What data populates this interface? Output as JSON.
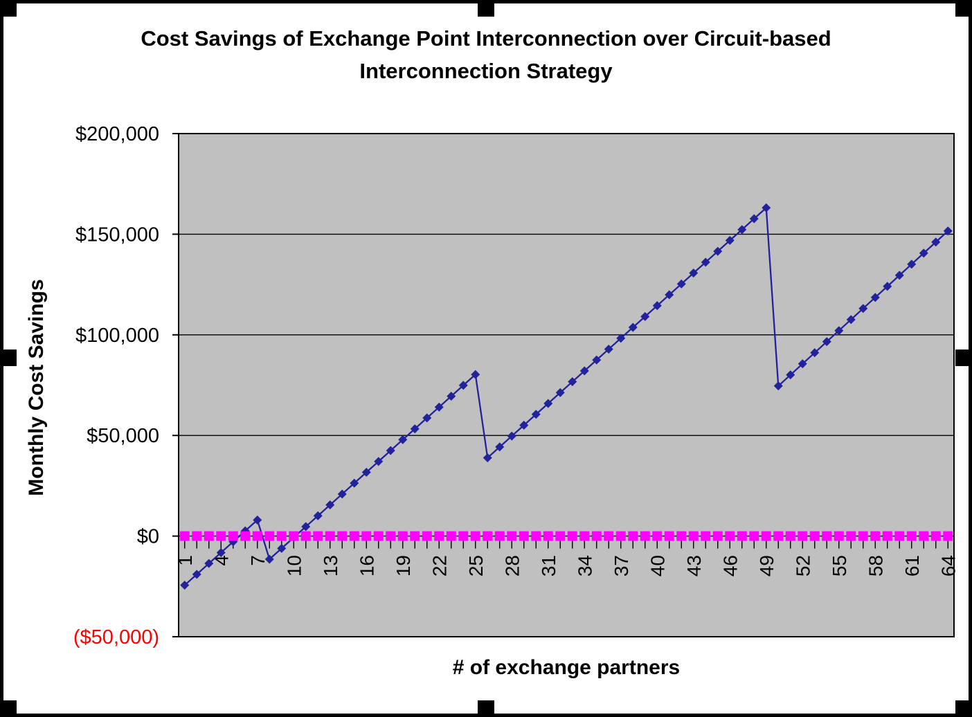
{
  "title": {
    "line1": "Cost Savings of Exchange Point Interconnection over Circuit-based",
    "line2": "Interconnection Strategy"
  },
  "y_axis": {
    "title": "Monthly Cost Savings",
    "tick_labels": [
      "$200,000",
      "$150,000",
      "$100,000",
      "$50,000",
      "$0",
      "($50,000)"
    ],
    "negative_label_color": "#FF0000",
    "label_color": "#000000"
  },
  "x_axis": {
    "title": "# of exchange partners",
    "tick_labels": [
      "1",
      "4",
      "7",
      "10",
      "13",
      "16",
      "19",
      "22",
      "25",
      "28",
      "31",
      "34",
      "37",
      "40",
      "43",
      "46",
      "49",
      "52",
      "55",
      "58",
      "61",
      "64"
    ],
    "label_interval": 3
  },
  "frame": {
    "border_color": "#000000",
    "handle_color": "#000000"
  },
  "chart_data": {
    "type": "line",
    "title": "Cost Savings of Exchange Point Interconnection over Circuit-based Interconnection Strategy",
    "xlabel": "# of exchange partners",
    "ylabel": "Monthly Cost Savings",
    "ylim": [
      -50000,
      200000
    ],
    "y_tick_step": 50000,
    "x_ticks_labeled": [
      1,
      4,
      7,
      10,
      13,
      16,
      19,
      22,
      25,
      28,
      31,
      34,
      37,
      40,
      43,
      46,
      49,
      52,
      55,
      58,
      61,
      64
    ],
    "plot_bg": "#C0C0C0",
    "grid": true,
    "grid_color": "#000000",
    "legend": "none",
    "x": [
      1,
      2,
      3,
      4,
      5,
      6,
      7,
      8,
      9,
      10,
      11,
      12,
      13,
      14,
      15,
      16,
      17,
      18,
      19,
      20,
      21,
      22,
      23,
      24,
      25,
      26,
      27,
      28,
      29,
      30,
      31,
      32,
      33,
      34,
      35,
      36,
      37,
      38,
      39,
      40,
      41,
      42,
      43,
      44,
      45,
      46,
      47,
      48,
      49,
      50,
      51,
      52,
      53,
      54,
      55,
      56,
      57,
      58,
      59,
      60,
      61,
      62,
      63,
      64
    ],
    "series": [
      {
        "id": "exchange-savings",
        "marker": "diamond",
        "color": "#22229B",
        "values": [
          -24400,
          -19000,
          -13600,
          -8200,
          -2800,
          2600,
          8000,
          -11500,
          -6100,
          -700,
          4700,
          10100,
          15500,
          20900,
          26300,
          31700,
          37100,
          42500,
          47900,
          53300,
          58700,
          64100,
          69500,
          74900,
          80300,
          38900,
          44300,
          49700,
          55100,
          60500,
          65900,
          71300,
          76700,
          82100,
          87500,
          92900,
          98300,
          103700,
          109100,
          114500,
          119900,
          125300,
          130700,
          136100,
          141500,
          146900,
          152300,
          157700,
          163100,
          74600,
          80100,
          85600,
          91100,
          96600,
          102100,
          107600,
          113100,
          118600,
          124100,
          129600,
          135100,
          140600,
          146100,
          151600
        ]
      },
      {
        "id": "break-even-zero-line",
        "marker": "square",
        "color": "#FF00FF",
        "values": [
          0,
          0,
          0,
          0,
          0,
          0,
          0,
          0,
          0,
          0,
          0,
          0,
          0,
          0,
          0,
          0,
          0,
          0,
          0,
          0,
          0,
          0,
          0,
          0,
          0,
          0,
          0,
          0,
          0,
          0,
          0,
          0,
          0,
          0,
          0,
          0,
          0,
          0,
          0,
          0,
          0,
          0,
          0,
          0,
          0,
          0,
          0,
          0,
          0,
          0,
          0,
          0,
          0,
          0,
          0,
          0,
          0,
          0,
          0,
          0,
          0,
          0,
          0,
          0
        ]
      }
    ]
  }
}
